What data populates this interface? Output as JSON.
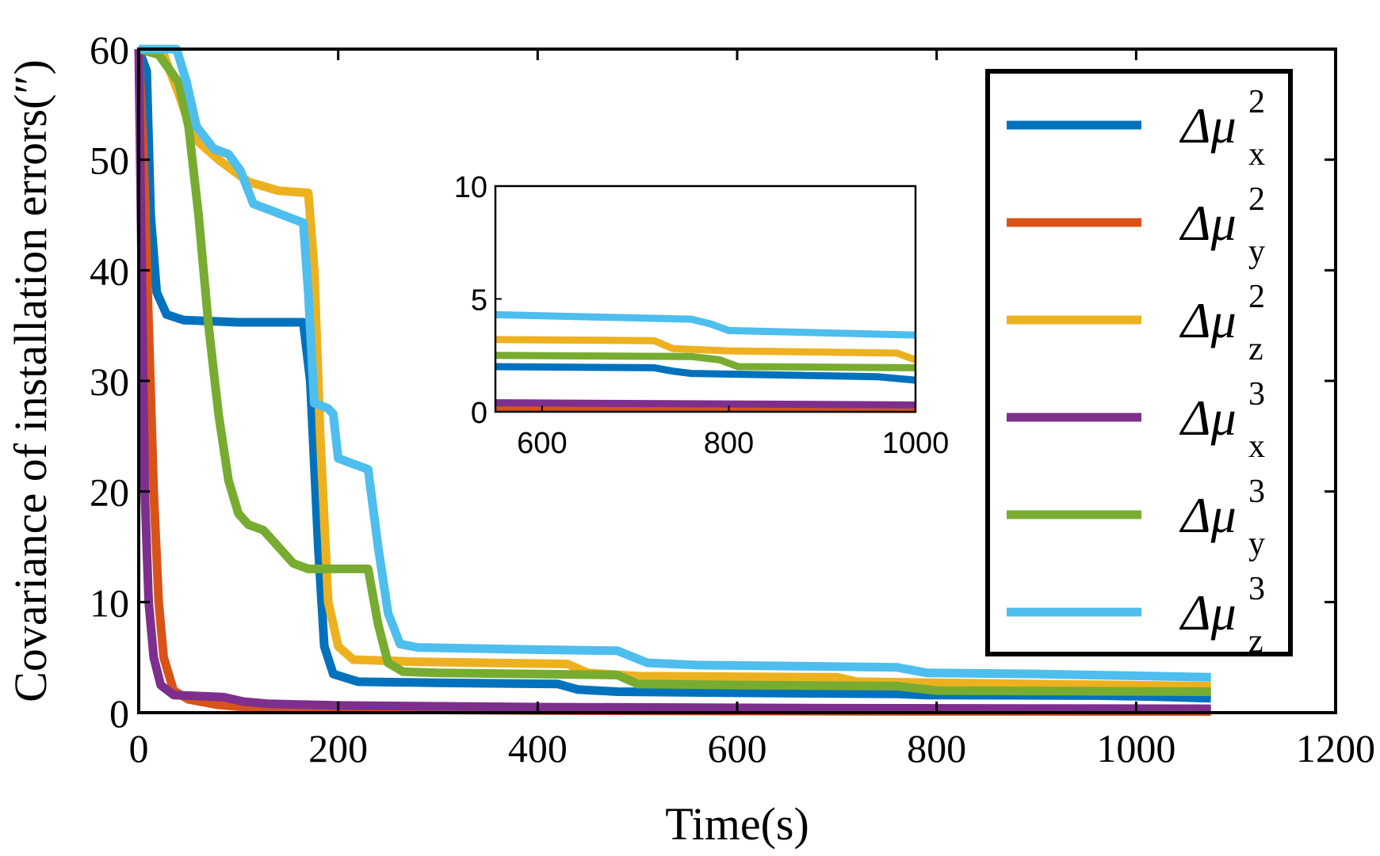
{
  "chart_data": [
    {
      "type": "line",
      "role": "main",
      "title": "",
      "xlabel": "Time(s)",
      "ylabel": "Covariance of installation errors(″)",
      "xlim": [
        0,
        1200
      ],
      "ylim": [
        0,
        60
      ],
      "xticks": [
        0,
        200,
        400,
        600,
        800,
        1000,
        1200
      ],
      "yticks": [
        0,
        10,
        20,
        30,
        40,
        50,
        60
      ],
      "xtick_labels": [
        "0",
        "200",
        "400",
        "600",
        "800",
        "1000",
        "1200"
      ],
      "ytick_labels": [
        "0",
        "10",
        "20",
        "30",
        "40",
        "50",
        "60"
      ],
      "grid": false,
      "legend_position": "right",
      "series": [
        {
          "name": "Δμ_x^2",
          "symbol": "Δμ",
          "subscript": "x",
          "superscript": "2",
          "color": "#0072BD",
          "points": [
            [
              0,
              60
            ],
            [
              8,
              58
            ],
            [
              12,
              45
            ],
            [
              18,
              38
            ],
            [
              28,
              36
            ],
            [
              45,
              35.5
            ],
            [
              100,
              35.3
            ],
            [
              165,
              35.3
            ],
            [
              172,
              30
            ],
            [
              180,
              15
            ],
            [
              186,
              6
            ],
            [
              195,
              3.5
            ],
            [
              220,
              2.8
            ],
            [
              300,
              2.7
            ],
            [
              420,
              2.6
            ],
            [
              440,
              2.1
            ],
            [
              480,
              1.9
            ],
            [
              600,
              1.8
            ],
            [
              760,
              1.7
            ],
            [
              790,
              1.6
            ],
            [
              960,
              1.55
            ],
            [
              1020,
              1.45
            ],
            [
              1075,
              1.3
            ]
          ]
        },
        {
          "name": "Δμ_y^2",
          "symbol": "Δμ",
          "subscript": "y",
          "superscript": "2",
          "color": "#D95319",
          "points": [
            [
              0,
              60
            ],
            [
              5,
              50
            ],
            [
              10,
              35
            ],
            [
              15,
              20
            ],
            [
              20,
              10
            ],
            [
              25,
              5
            ],
            [
              35,
              2
            ],
            [
              50,
              1.2
            ],
            [
              80,
              0.7
            ],
            [
              120,
              0.4
            ],
            [
              200,
              0.3
            ],
            [
              400,
              0.2
            ],
            [
              700,
              0.12
            ],
            [
              1075,
              0.1
            ]
          ]
        },
        {
          "name": "Δμ_z^2",
          "symbol": "Δμ",
          "subscript": "z",
          "superscript": "2",
          "color": "#EDB120",
          "points": [
            [
              0,
              60
            ],
            [
              25,
              59.5
            ],
            [
              40,
              56
            ],
            [
              55,
              52
            ],
            [
              80,
              50
            ],
            [
              110,
              48
            ],
            [
              140,
              47.2
            ],
            [
              170,
              47
            ],
            [
              176,
              40
            ],
            [
              182,
              25
            ],
            [
              190,
              10
            ],
            [
              200,
              6
            ],
            [
              215,
              4.8
            ],
            [
              280,
              4.6
            ],
            [
              430,
              4.4
            ],
            [
              450,
              3.6
            ],
            [
              500,
              3.3
            ],
            [
              700,
              3.2
            ],
            [
              720,
              2.8
            ],
            [
              800,
              2.7
            ],
            [
              1075,
              2.4
            ]
          ]
        },
        {
          "name": "Δμ_x^3",
          "symbol": "Δμ",
          "subscript": "x",
          "superscript": "3",
          "color": "#7E2F8E",
          "points": [
            [
              0,
              60
            ],
            [
              3,
              40
            ],
            [
              6,
              20
            ],
            [
              10,
              10
            ],
            [
              15,
              5
            ],
            [
              22,
              2.5
            ],
            [
              35,
              1.6
            ],
            [
              60,
              1.5
            ],
            [
              85,
              1.4
            ],
            [
              105,
              1.0
            ],
            [
              130,
              0.8
            ],
            [
              200,
              0.65
            ],
            [
              400,
              0.5
            ],
            [
              700,
              0.4
            ],
            [
              1075,
              0.35
            ]
          ]
        },
        {
          "name": "Δμ_y^3",
          "symbol": "Δμ",
          "subscript": "y",
          "superscript": "3",
          "color": "#77AC30",
          "points": [
            [
              0,
              60
            ],
            [
              20,
              59.5
            ],
            [
              40,
              57
            ],
            [
              50,
              53
            ],
            [
              60,
              45
            ],
            [
              70,
              35
            ],
            [
              80,
              27
            ],
            [
              90,
              21
            ],
            [
              100,
              18
            ],
            [
              110,
              17
            ],
            [
              125,
              16.5
            ],
            [
              140,
              15
            ],
            [
              155,
              13.5
            ],
            [
              170,
              13
            ],
            [
              210,
              13
            ],
            [
              230,
              13
            ],
            [
              240,
              8
            ],
            [
              250,
              4.5
            ],
            [
              265,
              3.7
            ],
            [
              300,
              3.6
            ],
            [
              480,
              3.4
            ],
            [
              500,
              2.6
            ],
            [
              600,
              2.5
            ],
            [
              760,
              2.4
            ],
            [
              800,
              2.0
            ],
            [
              1075,
              1.9
            ]
          ]
        },
        {
          "name": "Δμ_z^3",
          "symbol": "Δμ",
          "subscript": "z",
          "superscript": "3",
          "color": "#4DBEEE",
          "points": [
            [
              0,
              60
            ],
            [
              38,
              60
            ],
            [
              48,
              57
            ],
            [
              58,
              53
            ],
            [
              75,
              51
            ],
            [
              90,
              50.5
            ],
            [
              102,
              49
            ],
            [
              115,
              46
            ],
            [
              130,
              45.5
            ],
            [
              150,
              44.8
            ],
            [
              165,
              44.3
            ],
            [
              170,
              38
            ],
            [
              176,
              28
            ],
            [
              190,
              27.5
            ],
            [
              195,
              27
            ],
            [
              200,
              23
            ],
            [
              215,
              22.5
            ],
            [
              230,
              22
            ],
            [
              240,
              15
            ],
            [
              250,
              9
            ],
            [
              262,
              6.2
            ],
            [
              280,
              5.9
            ],
            [
              400,
              5.7
            ],
            [
              480,
              5.6
            ],
            [
              510,
              4.5
            ],
            [
              560,
              4.3
            ],
            [
              760,
              4.1
            ],
            [
              790,
              3.6
            ],
            [
              900,
              3.5
            ],
            [
              1075,
              3.2
            ]
          ]
        }
      ]
    },
    {
      "type": "line",
      "role": "inset",
      "title": "",
      "xlabel": "",
      "ylabel": "",
      "xlim": [
        550,
        1000
      ],
      "ylim": [
        0,
        10
      ],
      "xticks": [
        600,
        800,
        1000
      ],
      "yticks": [
        0,
        5,
        10
      ],
      "xtick_labels": [
        "600",
        "800",
        "1000"
      ],
      "ytick_labels": [
        "0",
        "5",
        "10"
      ],
      "grid": false,
      "series": [
        {
          "name": "Δμ_x^2",
          "color": "#0072BD",
          "points": [
            [
              550,
              2.0
            ],
            [
              720,
              1.95
            ],
            [
              740,
              1.8
            ],
            [
              760,
              1.7
            ],
            [
              960,
              1.55
            ],
            [
              1000,
              1.4
            ]
          ]
        },
        {
          "name": "Δμ_y^2",
          "color": "#D95319",
          "points": [
            [
              550,
              0.15
            ],
            [
              1000,
              0.1
            ]
          ]
        },
        {
          "name": "Δμ_z^2",
          "color": "#EDB120",
          "points": [
            [
              550,
              3.2
            ],
            [
              720,
              3.15
            ],
            [
              740,
              2.8
            ],
            [
              800,
              2.7
            ],
            [
              980,
              2.6
            ],
            [
              1000,
              2.3
            ]
          ]
        },
        {
          "name": "Δμ_x^3",
          "color": "#7E2F8E",
          "points": [
            [
              550,
              0.4
            ],
            [
              1000,
              0.3
            ]
          ]
        },
        {
          "name": "Δμ_y^3",
          "color": "#77AC30",
          "points": [
            [
              550,
              2.5
            ],
            [
              760,
              2.45
            ],
            [
              790,
              2.3
            ],
            [
              810,
              2.0
            ],
            [
              1000,
              1.95
            ]
          ]
        },
        {
          "name": "Δμ_z^3",
          "color": "#4DBEEE",
          "points": [
            [
              550,
              4.3
            ],
            [
              760,
              4.1
            ],
            [
              780,
              3.9
            ],
            [
              800,
              3.6
            ],
            [
              900,
              3.5
            ],
            [
              1000,
              3.4
            ]
          ]
        }
      ]
    }
  ]
}
